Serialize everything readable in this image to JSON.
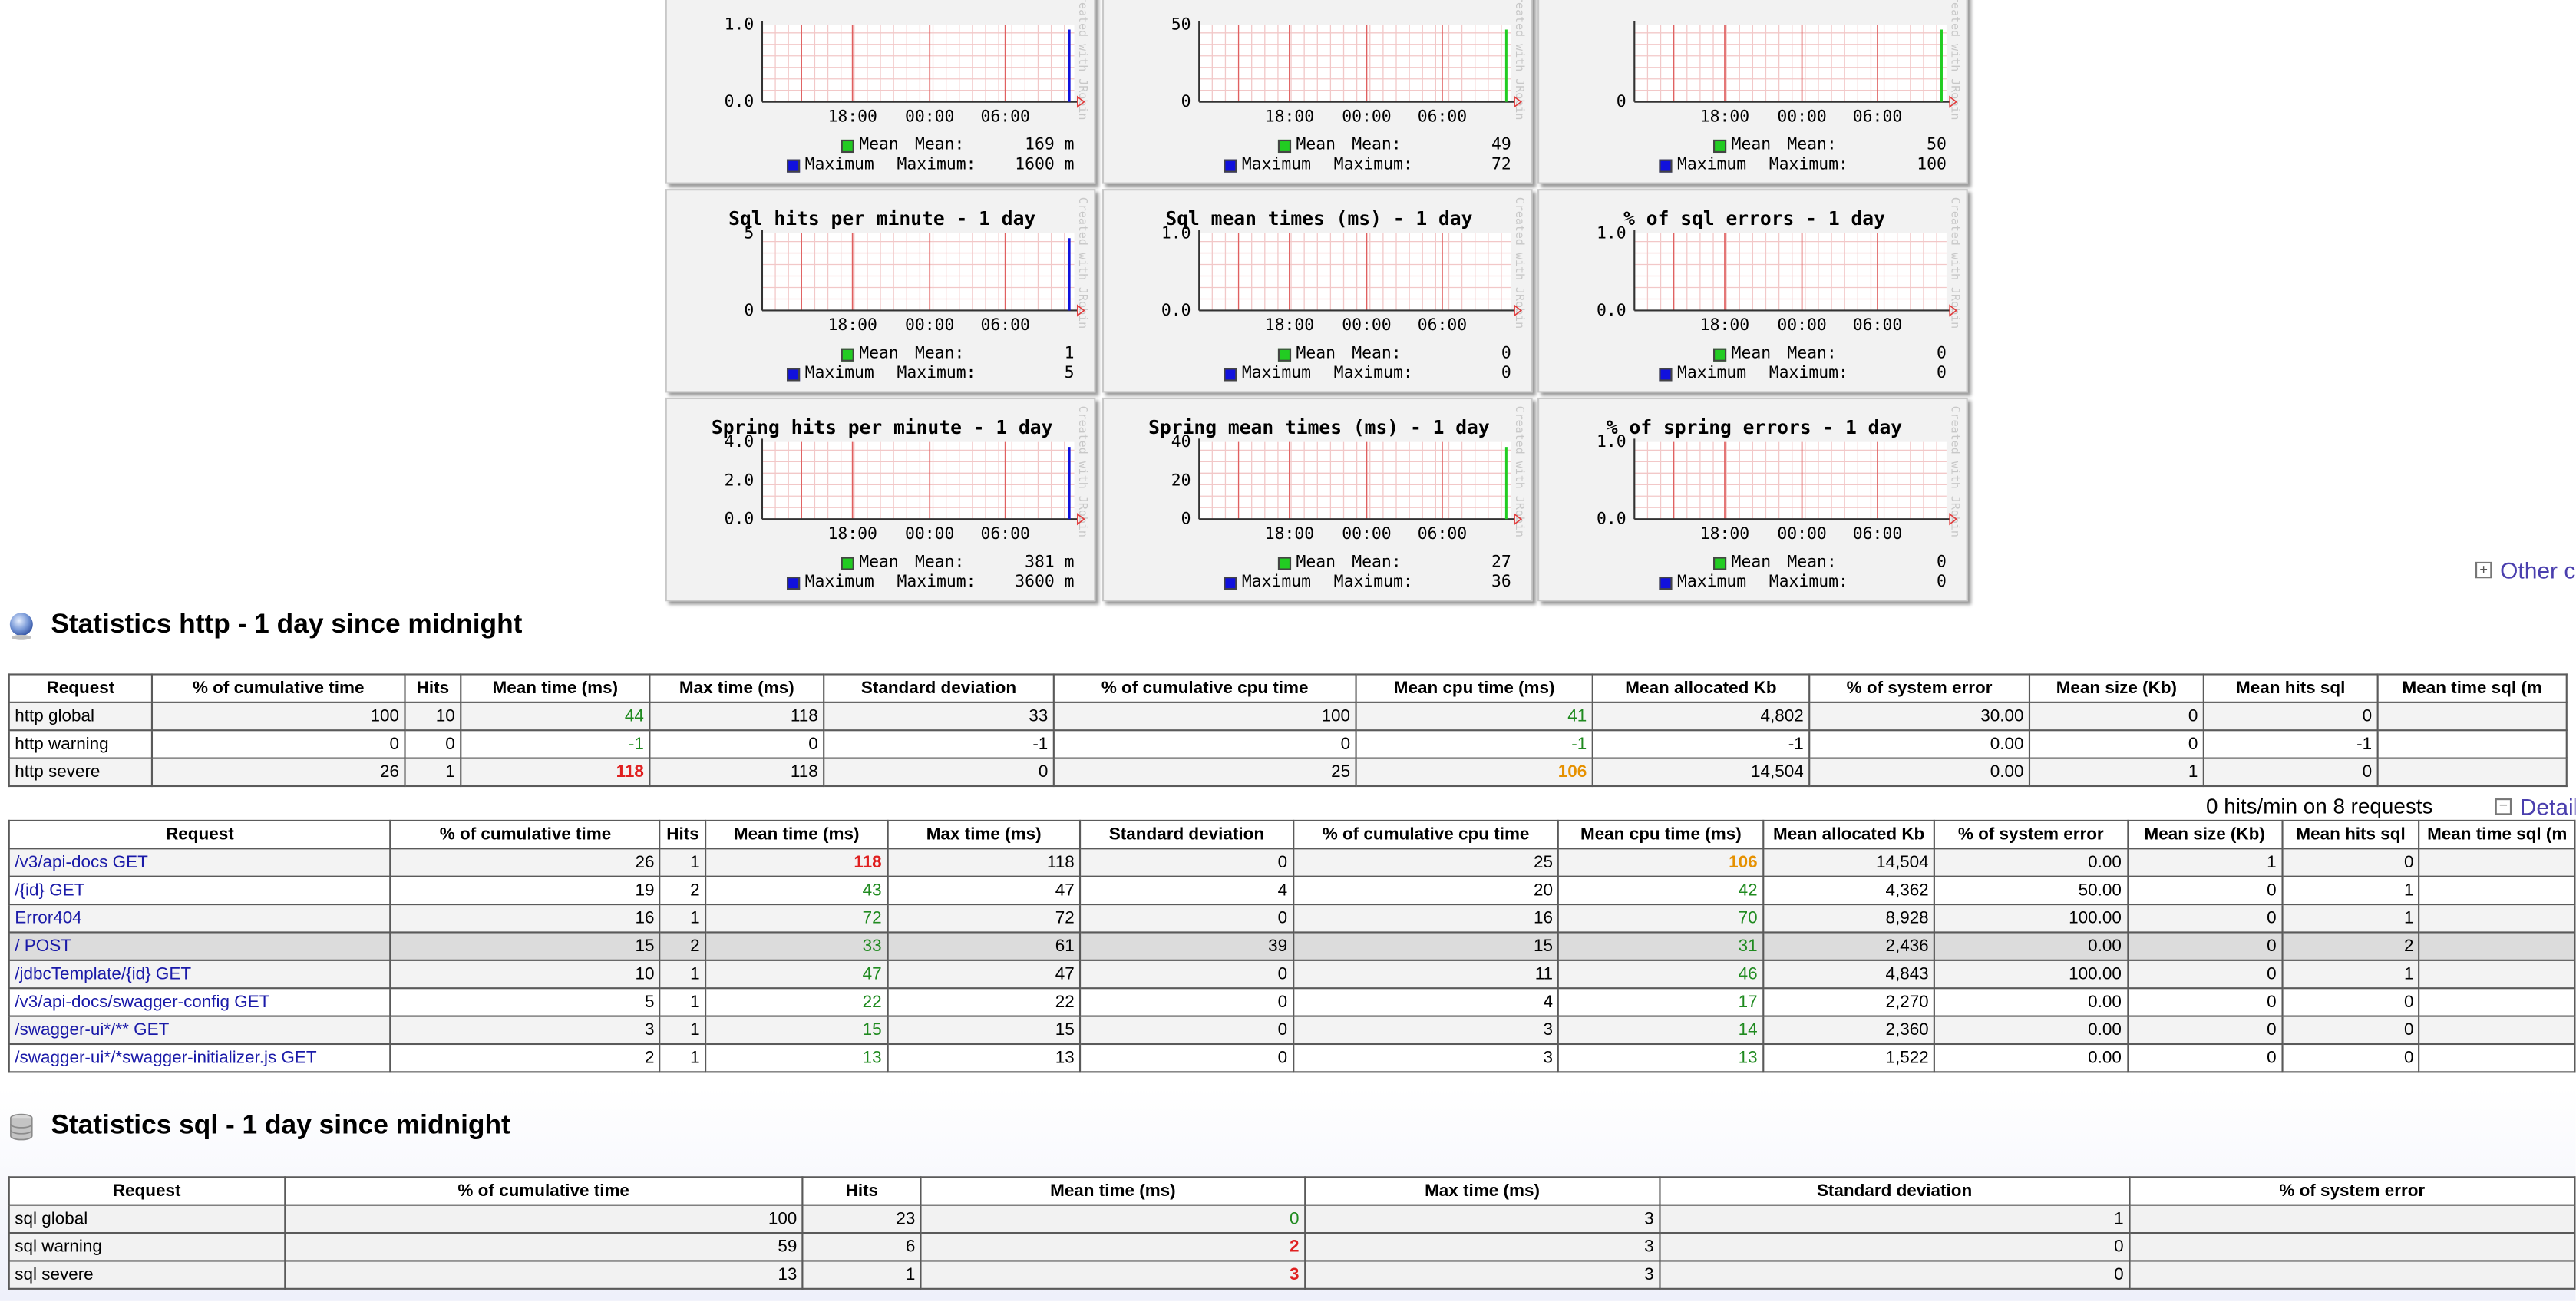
{
  "charts": [
    {
      "title": "",
      "ymax": "1.0",
      "ymid": "",
      "ymin": "0.0",
      "ticks": [
        "18:00",
        "00:00",
        "06:00"
      ],
      "mean_label": "Mean",
      "mean_text": "Mean:",
      "mean_value": "169 m",
      "max_label": "Maximum",
      "max_text": "Maximum:",
      "max_value": "1600 m",
      "mean_color": "#22cc22",
      "max_color": "#1111dd",
      "spike": "blue"
    },
    {
      "title": "",
      "ymax": "50",
      "ymid": "",
      "ymin": "0",
      "ticks": [
        "18:00",
        "00:00",
        "06:00"
      ],
      "mean_label": "Mean",
      "mean_text": "Mean:",
      "mean_value": "49",
      "max_label": "Maximum",
      "max_text": "Maximum:",
      "max_value": "72",
      "mean_color": "#22cc22",
      "max_color": "#1111dd",
      "spike": "green"
    },
    {
      "title": "",
      "ymax": "",
      "ymid": "",
      "ymin": "0",
      "ticks": [
        "18:00",
        "00:00",
        "06:00"
      ],
      "mean_label": "Mean",
      "mean_text": "Mean:",
      "mean_value": "50",
      "max_label": "Maximum",
      "max_text": "Maximum:",
      "max_value": "100",
      "mean_color": "#22cc22",
      "max_color": "#1111dd",
      "spike": "green"
    },
    {
      "title": "Sql hits per minute - 1 day",
      "ymax": "5",
      "ymid": "",
      "ymin": "0",
      "ticks": [
        "18:00",
        "00:00",
        "06:00"
      ],
      "mean_label": "Mean",
      "mean_text": "Mean:",
      "mean_value": "1",
      "max_label": "Maximum",
      "max_text": "Maximum:",
      "max_value": "5",
      "mean_color": "#22cc22",
      "max_color": "#1111dd",
      "spike": "blue"
    },
    {
      "title": "Sql mean times (ms) - 1 day",
      "ymax": "1.0",
      "ymid": "",
      "ymin": "0.0",
      "ticks": [
        "18:00",
        "00:00",
        "06:00"
      ],
      "mean_label": "Mean",
      "mean_text": "Mean:",
      "mean_value": "0",
      "max_label": "Maximum",
      "max_text": "Maximum:",
      "max_value": "0",
      "mean_color": "#22cc22",
      "max_color": "#1111dd",
      "spike": "none"
    },
    {
      "title": "% of sql errors - 1 day",
      "ymax": "1.0",
      "ymid": "",
      "ymin": "0.0",
      "ticks": [
        "18:00",
        "00:00",
        "06:00"
      ],
      "mean_label": "Mean",
      "mean_text": "Mean:",
      "mean_value": "0",
      "max_label": "Maximum",
      "max_text": "Maximum:",
      "max_value": "0",
      "mean_color": "#22cc22",
      "max_color": "#1111dd",
      "spike": "none"
    },
    {
      "title": "Spring hits per minute - 1 day",
      "ymax": "4.0",
      "ymid": "2.0",
      "ymin": "0.0",
      "ticks": [
        "18:00",
        "00:00",
        "06:00"
      ],
      "mean_label": "Mean",
      "mean_text": "Mean:",
      "mean_value": "381 m",
      "max_label": "Maximum",
      "max_text": "Maximum:",
      "max_value": "3600 m",
      "mean_color": "#22cc22",
      "max_color": "#1111dd",
      "spike": "blue"
    },
    {
      "title": "Spring mean times (ms) - 1 day",
      "ymax": "40",
      "ymid": "20",
      "ymin": "0",
      "ticks": [
        "18:00",
        "00:00",
        "06:00"
      ],
      "mean_label": "Mean",
      "mean_text": "Mean:",
      "mean_value": "27",
      "max_label": "Maximum",
      "max_text": "Maximum:",
      "max_value": "36",
      "mean_color": "#22cc22",
      "max_color": "#1111dd",
      "spike": "green"
    },
    {
      "title": "% of spring errors - 1 day",
      "ymax": "1.0",
      "ymid": "",
      "ymin": "0.0",
      "ticks": [
        "18:00",
        "00:00",
        "06:00"
      ],
      "mean_label": "Mean",
      "mean_text": "Mean:",
      "mean_value": "0",
      "max_label": "Maximum",
      "max_text": "Maximum:",
      "max_value": "0",
      "mean_color": "#22cc22",
      "max_color": "#1111dd",
      "spike": "none"
    }
  ],
  "other_charts_link": "Other c",
  "http": {
    "title": "Statistics http - 1 day since midnight",
    "columns": [
      "Request",
      "% of cumulative time",
      "Hits",
      "Mean time (ms)",
      "Max time (ms)",
      "Standard deviation",
      "% of cumulative cpu time",
      "Mean cpu time (ms)",
      "Mean allocated Kb",
      "% of system error",
      "Mean size (Kb)",
      "Mean hits sql",
      "Mean time sql (m"
    ],
    "summary": [
      {
        "request": "http global",
        "cum": "100",
        "hits": "10",
        "mean": "44",
        "mean_cls": "g",
        "max": "118",
        "std": "33",
        "cpu_cum": "100",
        "cpu_mean": "41",
        "cpu_cls": "g",
        "alloc": "4,802",
        "err": "30.00",
        "size": "0",
        "sqlhits": "0",
        "sqltime": ""
      },
      {
        "request": "http warning",
        "cum": "0",
        "hits": "0",
        "mean": "-1",
        "mean_cls": "g",
        "max": "0",
        "std": "-1",
        "cpu_cum": "0",
        "cpu_mean": "-1",
        "cpu_cls": "g",
        "alloc": "-1",
        "err": "0.00",
        "size": "0",
        "sqlhits": "-1",
        "sqltime": ""
      },
      {
        "request": "http severe",
        "cum": "26",
        "hits": "1",
        "mean": "118",
        "mean_cls": "r",
        "max": "118",
        "std": "0",
        "cpu_cum": "25",
        "cpu_mean": "106",
        "cpu_cls": "o",
        "alloc": "14,504",
        "err": "0.00",
        "size": "1",
        "sqlhits": "0",
        "sqltime": ""
      }
    ],
    "info": "0 hits/min on 8 requests",
    "detail_link": "Detail",
    "detail_columns": [
      "Request",
      "% of cumulative time",
      "Hits",
      "Mean time (ms)",
      "Max time (ms)",
      "Standard deviation",
      "% of cumulative cpu time",
      "Mean cpu time (ms)",
      "Mean allocated Kb",
      "% of system error",
      "Mean size (Kb)",
      "Mean hits sql",
      "Mean time sql (m"
    ],
    "rows": [
      {
        "request": "/v3/api-docs GET",
        "cum": "26",
        "hits": "1",
        "mean": "118",
        "mean_cls": "r",
        "max": "118",
        "std": "0",
        "cpu_cum": "25",
        "cpu_mean": "106",
        "cpu_cls": "o",
        "alloc": "14,504",
        "err": "0.00",
        "size": "1",
        "sqlhits": "0"
      },
      {
        "request": "/{id} GET",
        "cum": "19",
        "hits": "2",
        "mean": "43",
        "mean_cls": "g",
        "max": "47",
        "std": "4",
        "cpu_cum": "20",
        "cpu_mean": "42",
        "cpu_cls": "g",
        "alloc": "4,362",
        "err": "50.00",
        "size": "0",
        "sqlhits": "1"
      },
      {
        "request": "Error404",
        "cum": "16",
        "hits": "1",
        "mean": "72",
        "mean_cls": "g",
        "max": "72",
        "std": "0",
        "cpu_cum": "16",
        "cpu_mean": "70",
        "cpu_cls": "g",
        "alloc": "8,928",
        "err": "100.00",
        "size": "0",
        "sqlhits": "1"
      },
      {
        "request": "/ POST",
        "cum": "15",
        "hits": "2",
        "mean": "33",
        "mean_cls": "g",
        "max": "61",
        "std": "39",
        "cpu_cum": "15",
        "cpu_mean": "31",
        "cpu_cls": "g",
        "alloc": "2,436",
        "err": "0.00",
        "size": "0",
        "sqlhits": "2"
      },
      {
        "request": "/jdbcTemplate/{id} GET",
        "cum": "10",
        "hits": "1",
        "mean": "47",
        "mean_cls": "g",
        "max": "47",
        "std": "0",
        "cpu_cum": "11",
        "cpu_mean": "46",
        "cpu_cls": "g",
        "alloc": "4,843",
        "err": "100.00",
        "size": "0",
        "sqlhits": "1"
      },
      {
        "request": "/v3/api-docs/swagger-config GET",
        "cum": "5",
        "hits": "1",
        "mean": "22",
        "mean_cls": "g",
        "max": "22",
        "std": "0",
        "cpu_cum": "4",
        "cpu_mean": "17",
        "cpu_cls": "g",
        "alloc": "2,270",
        "err": "0.00",
        "size": "0",
        "sqlhits": "0"
      },
      {
        "request": "/swagger-ui*/** GET",
        "cum": "3",
        "hits": "1",
        "mean": "15",
        "mean_cls": "g",
        "max": "15",
        "std": "0",
        "cpu_cum": "3",
        "cpu_mean": "14",
        "cpu_cls": "g",
        "alloc": "2,360",
        "err": "0.00",
        "size": "0",
        "sqlhits": "0"
      },
      {
        "request": "/swagger-ui*/*swagger-initializer.js GET",
        "cum": "2",
        "hits": "1",
        "mean": "13",
        "mean_cls": "g",
        "max": "13",
        "std": "0",
        "cpu_cum": "3",
        "cpu_mean": "13",
        "cpu_cls": "g",
        "alloc": "1,522",
        "err": "0.00",
        "size": "0",
        "sqlhits": "0"
      }
    ]
  },
  "sql": {
    "title": "Statistics sql - 1 day since midnight",
    "columns": [
      "Request",
      "% of cumulative time",
      "Hits",
      "Mean time (ms)",
      "Max time (ms)",
      "Standard deviation",
      "% of system error"
    ],
    "rows": [
      {
        "request": "sql global",
        "cum": "100",
        "hits": "23",
        "mean": "0",
        "mean_cls": "g",
        "max": "3",
        "std": "1"
      },
      {
        "request": "sql warning",
        "cum": "59",
        "hits": "6",
        "mean": "2",
        "mean_cls": "r",
        "max": "3",
        "std": "0"
      },
      {
        "request": "sql severe",
        "cum": "13",
        "hits": "1",
        "mean": "3",
        "mean_cls": "r",
        "max": "3",
        "std": "0"
      }
    ]
  },
  "watermark": "Created with JRobin"
}
